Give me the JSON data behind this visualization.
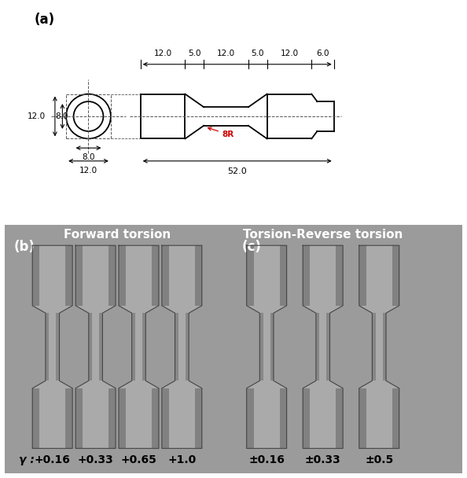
{
  "title_a": "(a)",
  "title_b": "(b)",
  "title_c": "(c)",
  "label_forward": "Forward torsion",
  "label_reverse": "Torsion-Reverse torsion",
  "gamma_label": "γ :",
  "forward_values": [
    "+0.16",
    "+0.33",
    "+0.65",
    "+1.0"
  ],
  "reverse_values": [
    "±0.16",
    "±0.33",
    "±0.5"
  ],
  "dim_top": [
    "12.0",
    "5.0",
    "12.0",
    "5.0",
    "12.0",
    "6.0"
  ],
  "dim_left_outer": "12.0",
  "dim_left_inner": "8.0",
  "dim_inner_dia": "8.0",
  "dim_outer_dia": "12.0",
  "dim_total": "52.0",
  "dim_8r": "8R",
  "bg_color_bottom": "#9b9b9b",
  "red_color": "#cc0000",
  "dashed_color": "#555555"
}
